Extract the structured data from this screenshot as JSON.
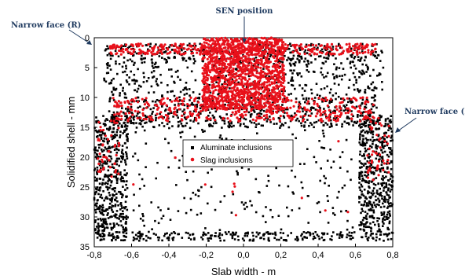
{
  "chart_data": {
    "type": "scatter",
    "xlabel": "Slab width - m",
    "ylabel": "Solidified shell - mm",
    "xlim": [
      -0.8,
      0.8
    ],
    "ylim": [
      0,
      35
    ],
    "y_inverted": true,
    "x_ticks": [
      "-0,8",
      "-0,6",
      "-0,4",
      "-0,2",
      "0,0",
      "0,2",
      "0,4",
      "0,6",
      "0,8"
    ],
    "y_ticks": [
      "0",
      "5",
      "10",
      "15",
      "20",
      "25",
      "30",
      "35"
    ],
    "legend_position": "center",
    "series": [
      {
        "name": "Aluminate inclusions",
        "color": "#000000",
        "marker": "square",
        "regions": [
          {
            "x": [
              -0.75,
              0.75
            ],
            "y": [
              1,
              4
            ],
            "count": 340
          },
          {
            "x": [
              -0.75,
              0.75
            ],
            "y": [
              4,
              10
            ],
            "count": 380
          },
          {
            "x": [
              -0.72,
              0.72
            ],
            "y": [
              10,
              15
            ],
            "count": 560
          },
          {
            "x": [
              -0.8,
              -0.62
            ],
            "y": [
              13,
              34
            ],
            "count": 520
          },
          {
            "x": [
              0.62,
              0.8
            ],
            "y": [
              13,
              34
            ],
            "count": 520
          },
          {
            "x": [
              -0.6,
              0.6
            ],
            "y": [
              15,
              34
            ],
            "count": 220
          },
          {
            "x": [
              -0.6,
              0.6
            ],
            "y": [
              32.5,
              34
            ],
            "count": 180
          }
        ]
      },
      {
        "name": "Slag inclusions",
        "color": "#e8101a",
        "marker": "circle",
        "regions": [
          {
            "x": [
              -0.72,
              0.72
            ],
            "y": [
              1,
              2.8
            ],
            "count": 360
          },
          {
            "x": [
              -0.22,
              0.22
            ],
            "y": [
              0,
              12
            ],
            "count": 1300
          },
          {
            "x": [
              -0.7,
              0.7
            ],
            "y": [
              10,
              14
            ],
            "count": 420
          },
          {
            "x": [
              -0.78,
              -0.66
            ],
            "y": [
              13,
              24
            ],
            "count": 45
          },
          {
            "x": [
              0.66,
              0.78
            ],
            "y": [
              13,
              24
            ],
            "count": 45
          },
          {
            "x": [
              -0.6,
              0.6
            ],
            "y": [
              16,
              34
            ],
            "count": 12
          }
        ]
      }
    ],
    "annotations": [
      {
        "text": "SEN position",
        "target": [
          0.0,
          0.5
        ]
      },
      {
        "text": "Narrow face (R)",
        "target": [
          -0.8,
          1.5
        ]
      },
      {
        "text": "Narrow face (L)",
        "target": [
          0.8,
          17
        ]
      }
    ]
  }
}
